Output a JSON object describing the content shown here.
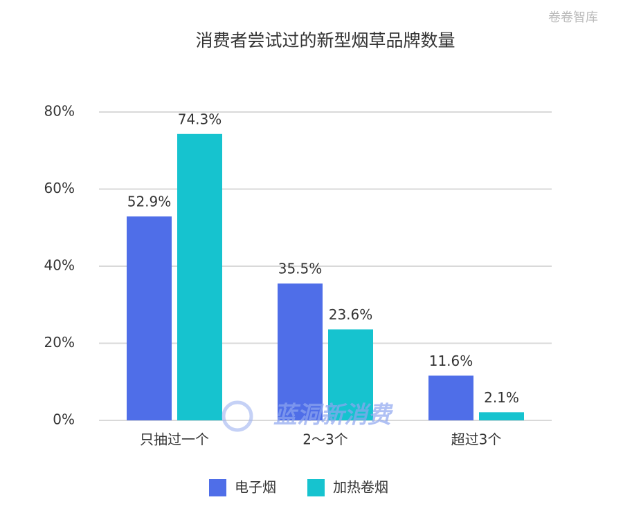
{
  "chart_data": {
    "type": "bar",
    "title": "消费者尝试过的新型烟草品牌数量",
    "categories": [
      "只抽过一个",
      "2～3个",
      "超过3个"
    ],
    "series": [
      {
        "name": "电子烟",
        "color": "#4f6ee8",
        "values": [
          52.9,
          35.5,
          11.6
        ],
        "value_labels": [
          "52.9%",
          "35.5%",
          "11.6%"
        ]
      },
      {
        "name": "加热卷烟",
        "color": "#16c3cf",
        "values": [
          74.3,
          23.6,
          2.1
        ],
        "value_labels": [
          "74.3%",
          "23.6%",
          "2.1%"
        ]
      }
    ],
    "ylim": [
      0,
      80
    ],
    "yticks": [
      {
        "value": 0,
        "label": "0%"
      },
      {
        "value": 20,
        "label": "20%"
      },
      {
        "value": 40,
        "label": "40%"
      },
      {
        "value": 60,
        "label": "60%"
      },
      {
        "value": 80,
        "label": "80%"
      }
    ],
    "grid": true,
    "legend": "bottom",
    "watermarks": [
      "卷卷智库",
      "蓝洞新消费"
    ]
  }
}
